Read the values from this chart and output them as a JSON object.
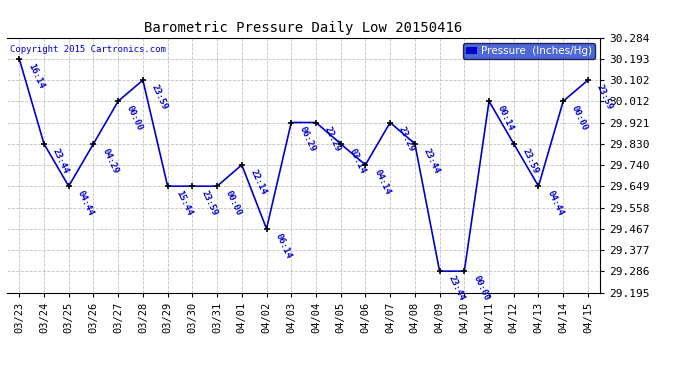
{
  "title": "Barometric Pressure Daily Low 20150416",
  "ylabel_legend": "Pressure  (Inches/Hg)",
  "copyright": "Copyright 2015 Cartronics.com",
  "dates": [
    "03/23",
    "03/24",
    "03/25",
    "03/26",
    "03/27",
    "03/28",
    "03/29",
    "03/30",
    "03/31",
    "04/01",
    "04/02",
    "04/03",
    "04/04",
    "04/05",
    "04/06",
    "04/07",
    "04/08",
    "04/09",
    "04/10",
    "04/11",
    "04/12",
    "04/13",
    "04/14",
    "04/15"
  ],
  "values": [
    30.193,
    29.83,
    29.649,
    29.83,
    30.012,
    30.102,
    29.649,
    29.649,
    29.649,
    29.74,
    29.467,
    29.921,
    29.921,
    29.83,
    29.74,
    29.921,
    29.83,
    29.286,
    29.286,
    30.012,
    29.83,
    29.649,
    30.012,
    30.102
  ],
  "point_labels": [
    "16:14",
    "23:44",
    "04:44",
    "04:29",
    "00:00",
    "23:59",
    "15:44",
    "23:59",
    "00:00",
    "22:14",
    "06:14",
    "06:29",
    "22:29",
    "03:14",
    "04:14",
    "23:29",
    "23:44",
    "23:44",
    "00:00",
    "00:14",
    "23:59",
    "04:44",
    "00:00",
    "23:59"
  ],
  "yticks": [
    29.195,
    29.286,
    29.377,
    29.467,
    29.558,
    29.649,
    29.74,
    29.83,
    29.921,
    30.012,
    30.102,
    30.193,
    30.284
  ],
  "ylim": [
    29.195,
    30.284
  ],
  "line_color": "#0000cc",
  "marker_color": "#000000",
  "grid_color": "#bbbbbb",
  "legend_bg": "#2244cc",
  "bg_color": "#ffffff"
}
